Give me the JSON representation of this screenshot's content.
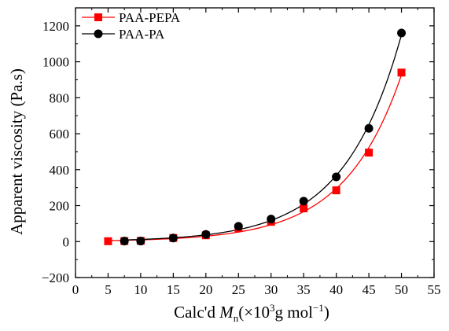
{
  "chart_data": {
    "type": "scatter",
    "title": "",
    "xlabel": "Calc'd M_n (×10³ g mol⁻¹)",
    "xlabel_parts": {
      "prefix": "Calc'd ",
      "var": "M",
      "sub": "n",
      "unit_open": "(×10",
      "sup1": "3",
      "unit_mid": "g mol",
      "sup2": "−1",
      "unit_close": ")"
    },
    "ylabel": "Apparent viscosity (Pa.s)",
    "xlim": [
      0,
      55
    ],
    "ylim": [
      -200,
      1300
    ],
    "xticks": [
      0,
      5,
      10,
      15,
      20,
      25,
      30,
      35,
      40,
      45,
      50,
      55
    ],
    "yticks": [
      -200,
      0,
      200,
      400,
      600,
      800,
      1000,
      1200
    ],
    "grid": false,
    "legend_position": "top-left",
    "series": [
      {
        "name": "PAA-PEPA",
        "color": "#ff0000",
        "marker": "square",
        "x": [
          5,
          7.5,
          10,
          15,
          20,
          25,
          30,
          35,
          40,
          45,
          50
        ],
        "y": [
          2,
          3,
          4,
          20,
          35,
          75,
          110,
          185,
          285,
          495,
          940
        ]
      },
      {
        "name": "PAA-PA",
        "color": "#000000",
        "marker": "circle",
        "x": [
          7.5,
          10,
          15,
          20,
          25,
          30,
          35,
          40,
          45,
          50
        ],
        "y": [
          3,
          3,
          20,
          40,
          85,
          125,
          225,
          360,
          630,
          1160
        ]
      }
    ]
  }
}
